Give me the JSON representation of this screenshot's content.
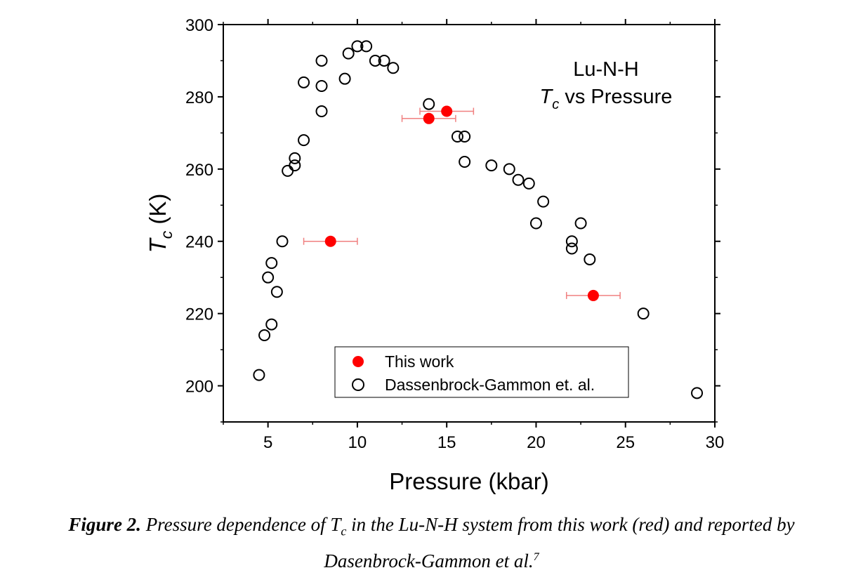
{
  "chart_data": {
    "type": "scatter",
    "title_line1": "Lu-N-H",
    "title_line2_sym": "T",
    "title_line2_sub": "c",
    "title_line2_rest": " vs Pressure",
    "xlabel": "Pressure (kbar)",
    "ylabel_sym": "T",
    "ylabel_sub": "c",
    "ylabel_rest": " (K)",
    "xlim": [
      2.5,
      30
    ],
    "ylim": [
      190,
      300
    ],
    "x_ticks": [
      5,
      10,
      15,
      20,
      25,
      30
    ],
    "y_ticks": [
      200,
      220,
      240,
      260,
      280,
      300
    ],
    "legend_position": "bottom-center",
    "series": [
      {
        "name": "This work",
        "marker": "filled-circle",
        "color": "#ff0000",
        "points": [
          {
            "x": 8.5,
            "y": 240,
            "xerr": 1.5
          },
          {
            "x": 14.0,
            "y": 274,
            "xerr": 1.5
          },
          {
            "x": 15.0,
            "y": 276,
            "xerr": 1.5
          },
          {
            "x": 23.2,
            "y": 225,
            "xerr": 1.5
          }
        ]
      },
      {
        "name": "Dassenbrock-Gammon et. al.",
        "marker": "open-circle",
        "color": "#000000",
        "points": [
          {
            "x": 4.5,
            "y": 203
          },
          {
            "x": 4.8,
            "y": 214
          },
          {
            "x": 5.2,
            "y": 217
          },
          {
            "x": 5.0,
            "y": 230
          },
          {
            "x": 5.2,
            "y": 234
          },
          {
            "x": 5.5,
            "y": 226
          },
          {
            "x": 5.8,
            "y": 240
          },
          {
            "x": 6.1,
            "y": 259.5
          },
          {
            "x": 6.5,
            "y": 261
          },
          {
            "x": 6.5,
            "y": 263
          },
          {
            "x": 7.0,
            "y": 268
          },
          {
            "x": 7.0,
            "y": 284
          },
          {
            "x": 8.0,
            "y": 276
          },
          {
            "x": 8.0,
            "y": 283
          },
          {
            "x": 8.0,
            "y": 290
          },
          {
            "x": 9.3,
            "y": 285
          },
          {
            "x": 9.5,
            "y": 292
          },
          {
            "x": 10.0,
            "y": 294
          },
          {
            "x": 10.5,
            "y": 294
          },
          {
            "x": 11.0,
            "y": 290
          },
          {
            "x": 11.5,
            "y": 290
          },
          {
            "x": 12.0,
            "y": 288
          },
          {
            "x": 14.0,
            "y": 278
          },
          {
            "x": 15.6,
            "y": 269
          },
          {
            "x": 16.0,
            "y": 269
          },
          {
            "x": 16.0,
            "y": 262
          },
          {
            "x": 17.5,
            "y": 261
          },
          {
            "x": 18.5,
            "y": 260
          },
          {
            "x": 19.0,
            "y": 257
          },
          {
            "x": 19.6,
            "y": 256
          },
          {
            "x": 20.4,
            "y": 251
          },
          {
            "x": 20.0,
            "y": 245
          },
          {
            "x": 22.0,
            "y": 240
          },
          {
            "x": 22.0,
            "y": 238
          },
          {
            "x": 22.5,
            "y": 245
          },
          {
            "x": 23.0,
            "y": 235
          },
          {
            "x": 26.0,
            "y": 220
          },
          {
            "x": 29.0,
            "y": 198
          }
        ]
      }
    ]
  },
  "caption": {
    "figure_label": "Figure 2.",
    "text_before_sym": " Pressure dependence of ",
    "sym": "T",
    "sym_sub": "c",
    "text_line1_end": " in the Lu-N-H system from this work (red) and reported by",
    "text_line2": "Dasenbrock-Gammon et al.",
    "ref": "7"
  }
}
